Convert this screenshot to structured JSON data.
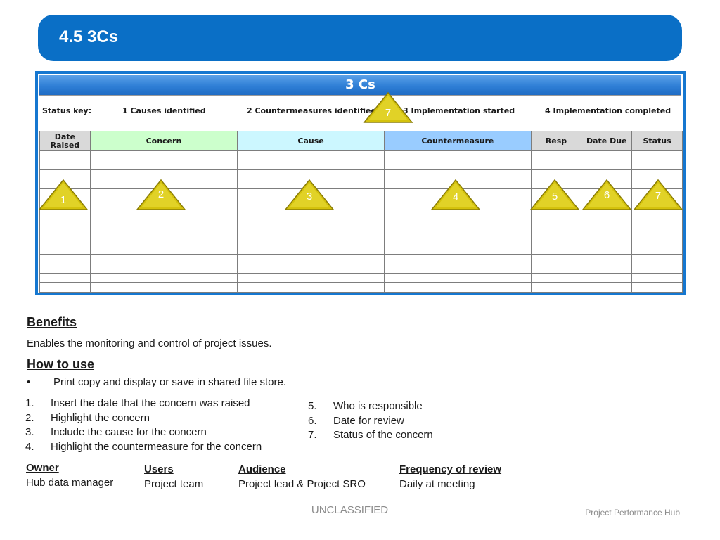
{
  "title": "4.5 3Cs",
  "sheet": {
    "header": "3 Cs",
    "status_key_label": "Status key:",
    "status_items": [
      "1 Causes identified",
      "2 Countermeasures identified",
      "3 Implementation started",
      "4 Implementation completed"
    ],
    "columns": [
      {
        "key": "date_raised",
        "label": "Date Raised",
        "bg": "#d9d9d9"
      },
      {
        "key": "concern",
        "label": "Concern",
        "bg": "#ccffcc"
      },
      {
        "key": "cause",
        "label": "Cause",
        "bg": "#ccf7ff"
      },
      {
        "key": "countermeasure",
        "label": "Countermeasure",
        "bg": "#99ccff"
      },
      {
        "key": "resp",
        "label": "Resp",
        "bg": "#d9d9d9"
      },
      {
        "key": "date_due",
        "label": "Date Due",
        "bg": "#d9d9d9"
      },
      {
        "key": "status",
        "label": "Status",
        "bg": "#d9d9d9"
      }
    ],
    "blank_rows": 15,
    "markers": [
      "1",
      "2",
      "3",
      "4",
      "5",
      "6",
      "7",
      "7"
    ]
  },
  "benefits": {
    "heading": "Benefits",
    "text": "Enables the monitoring and control of project issues."
  },
  "how_to_use": {
    "heading": "How to use",
    "bullet_symbol": "•",
    "bullet": "Print copy and display or save in shared file store.",
    "steps_left": [
      {
        "n": "1.",
        "text": "Insert the date that the concern was raised"
      },
      {
        "n": "2.",
        "text": "Highlight the concern"
      },
      {
        "n": "3.",
        "text": "Include the cause for the concern"
      },
      {
        "n": "4.",
        "text": "Highlight the countermeasure for the concern"
      }
    ],
    "steps_right": [
      {
        "n": "5.",
        "text": "Who is responsible"
      },
      {
        "n": "6.",
        "text": "Date for review"
      },
      {
        "n": "7.",
        "text": "Status of the concern"
      }
    ]
  },
  "info": {
    "owner": {
      "label": "Owner",
      "value": "Hub data manager"
    },
    "users": {
      "label": "Users",
      "value": "Project team"
    },
    "audience": {
      "label": "Audience",
      "value": "Project lead & Project SRO"
    },
    "frequency": {
      "label": "Frequency of review",
      "value": "Daily at meeting"
    }
  },
  "footer": {
    "classification": "UNCLASSIFIED",
    "brand": "Project Performance Hub"
  },
  "colors": {
    "title_bar": "#0a6fc6",
    "sheet_border": "#1577d0",
    "marker_fill": "#d4c20c",
    "footer_text": "#8c8c8c"
  }
}
